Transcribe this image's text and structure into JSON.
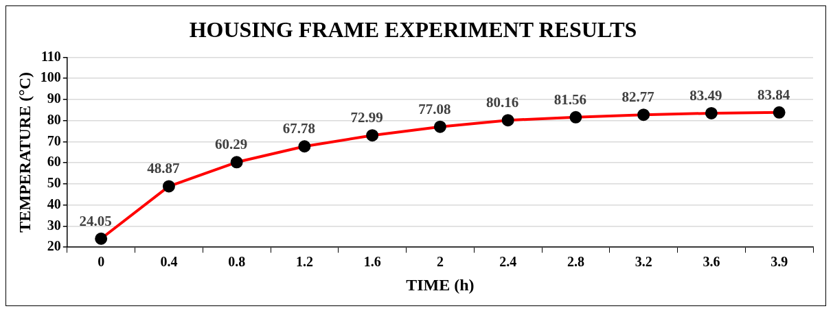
{
  "chart_data": {
    "type": "line",
    "title": "HOUSING FRAME EXPERIMENT RESULTS",
    "xlabel": "TIME (h)",
    "ylabel": "TEMPERATURE (°C)",
    "categories": [
      "0",
      "0.4",
      "0.8",
      "1.2",
      "1.6",
      "2",
      "2.4",
      "2.8",
      "3.2",
      "3.6",
      "3.9"
    ],
    "series": [
      {
        "color": "#ff0000",
        "values": [
          24.05,
          48.87,
          60.29,
          67.78,
          72.99,
          77.08,
          80.16,
          81.56,
          82.77,
          83.49,
          83.84
        ]
      }
    ],
    "ylim": [
      20,
      110
    ],
    "yticks": [
      20,
      30,
      40,
      50,
      60,
      70,
      80,
      90,
      100,
      110
    ],
    "grid": "y",
    "legend": false,
    "marker": "circle",
    "line_style": "solid",
    "data_labels": true
  }
}
